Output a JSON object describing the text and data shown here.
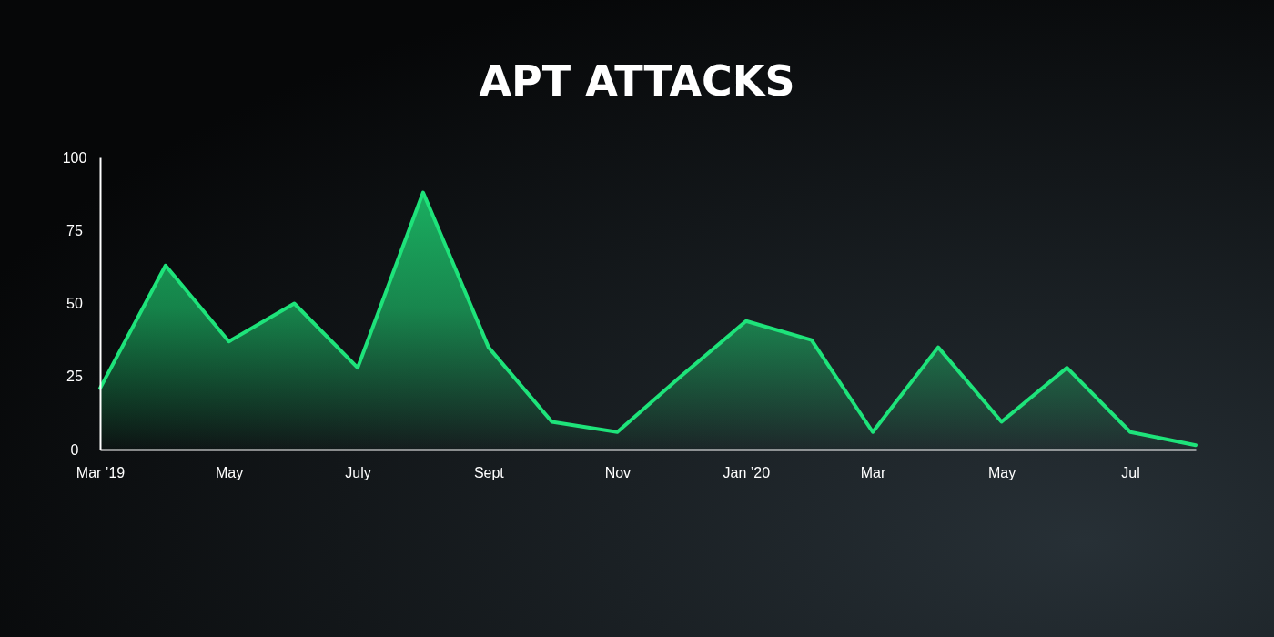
{
  "chart_data": {
    "type": "area",
    "title": "APT ATTACKS",
    "x": [
      "2019-03",
      "2019-04",
      "2019-05",
      "2019-06",
      "2019-07",
      "2019-08",
      "2019-09",
      "2019-10",
      "2019-11",
      "2019-12",
      "2020-01",
      "2020-02",
      "2020-03",
      "2020-04",
      "2020-05",
      "2020-06",
      "2020-07",
      "2020-08"
    ],
    "series": [
      {
        "color": "#1ee37a",
        "values": [
          21,
          63,
          37,
          50,
          28,
          88,
          35,
          9.5,
          6,
          25,
          44,
          37.5,
          6,
          35,
          9.5,
          28,
          6,
          1.5
        ]
      }
    ],
    "xlim": [
      "2019-03",
      "2020-08"
    ],
    "xticks": [
      {
        "value": "2019-03",
        "label": "Mar ’19"
      },
      {
        "value": "2019-05",
        "label": "May"
      },
      {
        "value": "2019-07",
        "label": "July"
      },
      {
        "value": "2019-09",
        "label": "Sept"
      },
      {
        "value": "2019-11",
        "label": "Nov"
      },
      {
        "value": "2020-01",
        "label": "Jan ’20"
      },
      {
        "value": "2020-03",
        "label": "Mar"
      },
      {
        "value": "2020-05",
        "label": "May"
      },
      {
        "value": "2020-07",
        "label": "Jul"
      }
    ],
    "ylim": [
      0,
      100
    ],
    "yticks": [
      0,
      25,
      50,
      75,
      100
    ],
    "grid": false
  }
}
